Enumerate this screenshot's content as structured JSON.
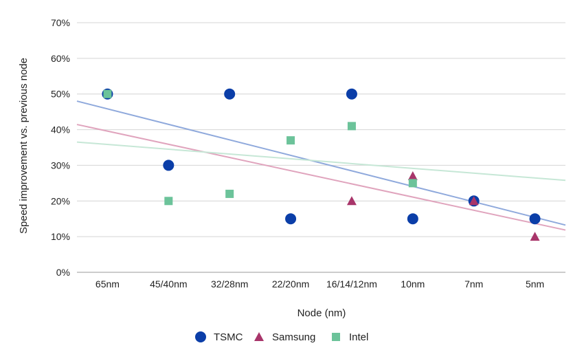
{
  "chart_data": {
    "type": "scatter",
    "title": "",
    "xlabel": "Node (nm)",
    "ylabel": "Speed improvement vs. previous node",
    "categories": [
      "65nm",
      "45/40nm",
      "32/28nm",
      "22/20nm",
      "16/14/12nm",
      "10nm",
      "7nm",
      "5nm"
    ],
    "y_ticks": [
      "0%",
      "10%",
      "20%",
      "30%",
      "40%",
      "50%",
      "60%",
      "70%"
    ],
    "ylim": [
      0,
      70
    ],
    "grid": true,
    "legend_position": "bottom",
    "trendlines": true,
    "series": [
      {
        "name": "TSMC",
        "marker": "circle",
        "color": "#0b3ea8",
        "trend_color": "#8fa9dc",
        "values": [
          50,
          30,
          50,
          15,
          50,
          15,
          20,
          15
        ]
      },
      {
        "name": "Samsung",
        "marker": "triangle",
        "color": "#a8356a",
        "trend_color": "#e0a4bd",
        "values": [
          null,
          null,
          null,
          null,
          20,
          27,
          20,
          10
        ]
      },
      {
        "name": "Intel",
        "marker": "square",
        "color": "#6cc39a",
        "trend_color": "#c6e7d6",
        "values": [
          50,
          20,
          22,
          37,
          41,
          25,
          null,
          null
        ]
      }
    ]
  }
}
